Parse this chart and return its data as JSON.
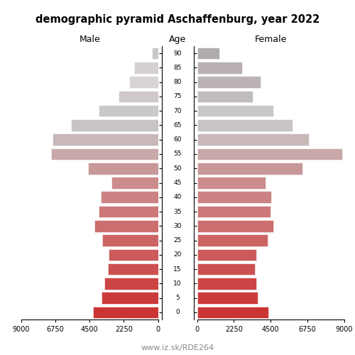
{
  "title": "demographic pyramid Aschaffenburg, year 2022",
  "male_label": "Male",
  "female_label": "Female",
  "age_label": "Age",
  "footer": "www.iz.sk/RDE264",
  "age_groups": [
    "0",
    "5",
    "10",
    "15",
    "20",
    "25",
    "30",
    "35",
    "40",
    "45",
    "50",
    "55",
    "60",
    "65",
    "70",
    "75",
    "80",
    "85",
    "90"
  ],
  "male_values": [
    4300,
    3700,
    3550,
    3300,
    3250,
    3650,
    4200,
    3900,
    3750,
    3050,
    4600,
    7050,
    6950,
    5750,
    3900,
    2600,
    1900,
    1550,
    410
  ],
  "female_values": [
    4350,
    3700,
    3600,
    3550,
    3600,
    4300,
    4650,
    4500,
    4550,
    4200,
    6450,
    8850,
    6850,
    5850,
    4650,
    3400,
    3900,
    2750,
    1350
  ],
  "xlim": 9000,
  "xticks": [
    0,
    2250,
    4500,
    6750,
    9000
  ],
  "xticklabels": [
    "0",
    "2250",
    "4500",
    "6750",
    "9000"
  ],
  "male_bar_colors": [
    "#cc3333",
    "#cc3b3b",
    "#cc4545",
    "#cc5050",
    "#cc5a5a",
    "#cc6464",
    "#cc6e6e",
    "#cc7878",
    "#cc8282",
    "#cc8c8c",
    "#c89898",
    "#c8a8a8",
    "#c8b8b8",
    "#c8c4c4",
    "#c8caca",
    "#d0c8c8",
    "#d8d4d4",
    "#d4d0d0",
    "#c8c8c8"
  ],
  "female_bar_colors": [
    "#cc3333",
    "#cc3b3b",
    "#cc4545",
    "#cc5050",
    "#cc5a5a",
    "#cc6464",
    "#cc6e6e",
    "#cc7878",
    "#cc8282",
    "#cc8c8c",
    "#c89898",
    "#c8a8a8",
    "#c8b8b8",
    "#c8c4c4",
    "#c8caca",
    "#c0bcbc",
    "#bcb4b4",
    "#b8b0b0",
    "#b0acac"
  ],
  "bar_height": 0.82,
  "figsize": [
    5.0,
    5.0
  ],
  "dpi": 100
}
